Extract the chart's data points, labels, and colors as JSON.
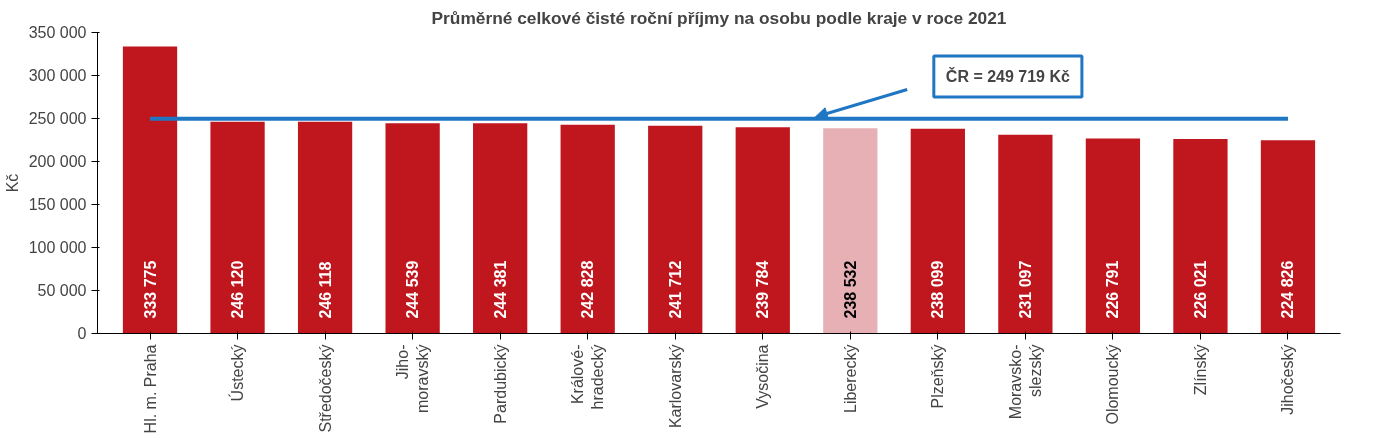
{
  "chart_data": {
    "type": "bar",
    "title": "Průměrné celkové čisté roční příjmy na osobu podle kraje v roce 2021",
    "ylabel": "Kč",
    "categories": [
      "Hl. m. Praha",
      "Ústecký",
      "Středočeský",
      "Jiho-\nmoravský",
      "Pardubický",
      "Králové-\nhradecký",
      "Karlovarský",
      "Vysočina",
      "Liberecký",
      "Plzeňský",
      "Moravsko-\nslezský",
      "Olomoucký",
      "Zlínský",
      "Jihočeský"
    ],
    "values": [
      333775,
      246120,
      246118,
      244539,
      244381,
      242828,
      241712,
      239784,
      238532,
      238099,
      231097,
      226791,
      226021,
      224826
    ],
    "colors": [
      "#c0171f",
      "#c0171f",
      "#c0171f",
      "#c0171f",
      "#c0171f",
      "#c0171f",
      "#c0171f",
      "#c0171f",
      "#e6b0b5",
      "#c0171f",
      "#c0171f",
      "#c0171f",
      "#c0171f",
      "#c0171f"
    ],
    "value_labels": [
      "333 775",
      "246 120",
      "246 118",
      "244 539",
      "244 381",
      "242 828",
      "241 712",
      "239 784",
      "238 532",
      "238 099",
      "231 097",
      "226 791",
      "226 021",
      "224 826"
    ],
    "ylim": [
      0,
      350000
    ],
    "yticks": [
      {
        "value": 0,
        "label": "0"
      },
      {
        "value": 50000,
        "label": "50 000"
      },
      {
        "value": 100000,
        "label": "100 000"
      },
      {
        "value": 150000,
        "label": "150 000"
      },
      {
        "value": 200000,
        "label": "200 000"
      },
      {
        "value": 250000,
        "label": "250 000"
      },
      {
        "value": 300000,
        "label": "300 000"
      },
      {
        "value": 350000,
        "label": "350 000"
      }
    ],
    "ref_lines": [
      {
        "axis": "y",
        "value": 249719,
        "label": "ČR = 249 719 Kč",
        "color": "#1f77c4"
      }
    ],
    "grid": false
  }
}
